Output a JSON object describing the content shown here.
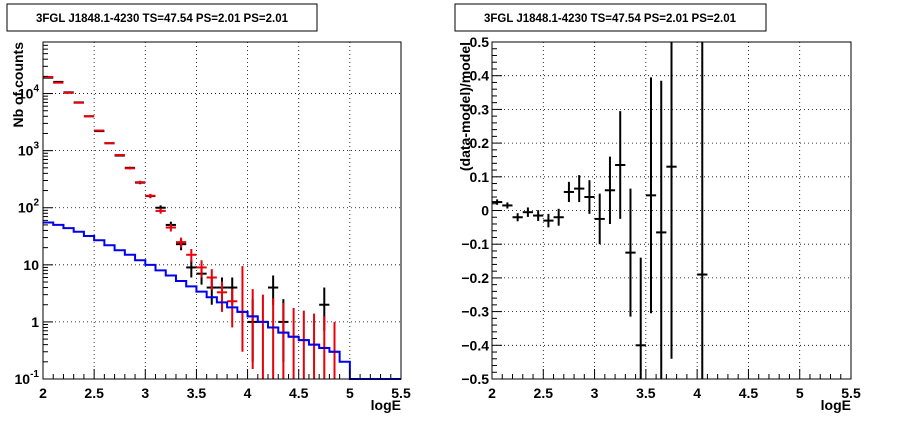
{
  "chart_data": [
    {
      "type": "step-histogram",
      "title": "3FGL J1848.1-4230 TS=47.54 PS=2.01 PS=2.01",
      "xlabel": "logE",
      "ylabel": "Nb of counts",
      "xlim": [
        2,
        5.5
      ],
      "ylim": [
        0.1,
        80000
      ],
      "yscale": "log",
      "grid": true,
      "x_ticks": [
        "2",
        "2.5",
        "3",
        "3.5",
        "4",
        "4.5",
        "5",
        "5.5"
      ],
      "y_ticks": [
        {
          "v": 0.1,
          "label": "10^-1"
        },
        {
          "v": 1,
          "label": "1"
        },
        {
          "v": 10,
          "label": "10"
        },
        {
          "v": 100,
          "label": "10^2"
        },
        {
          "v": 1000,
          "label": "10^3"
        },
        {
          "v": 10000,
          "label": "10^4"
        }
      ],
      "bin_width": 0.1,
      "series": [
        {
          "style": "points",
          "color": "#000000",
          "x": [
            2.05,
            2.15,
            2.25,
            2.35,
            2.45,
            2.55,
            2.65,
            2.75,
            2.85,
            2.95,
            3.05,
            3.15,
            3.25,
            3.35,
            3.45,
            3.55,
            3.65,
            3.75,
            3.85,
            4.05,
            4.25,
            4.35,
            4.75
          ],
          "y": [
            19000,
            16000,
            10500,
            7000,
            4000,
            2200,
            1350,
            820,
            500,
            275,
            160,
            100,
            50,
            23,
            9,
            7,
            4,
            4,
            4,
            1,
            4,
            1,
            2
          ],
          "err_lo": [
            140,
            130,
            100,
            85,
            65,
            47,
            37,
            29,
            22,
            17,
            13,
            10,
            7,
            5,
            3,
            2.5,
            2,
            2,
            2,
            0.8,
            2,
            0.8,
            1.3
          ],
          "err_hi": [
            140,
            130,
            100,
            85,
            65,
            47,
            37,
            29,
            22,
            17,
            13,
            10,
            7,
            5,
            3,
            2.5,
            2,
            2,
            2,
            1.5,
            2.5,
            1.5,
            2
          ]
        },
        {
          "style": "points",
          "color": "#e8000b",
          "x": [
            2.05,
            2.15,
            2.25,
            2.35,
            2.45,
            2.55,
            2.65,
            2.75,
            2.85,
            2.95,
            3.05,
            3.15,
            3.25,
            3.35,
            3.45,
            3.55,
            3.65,
            3.75,
            3.85,
            3.95,
            4.05,
            4.15,
            4.25,
            4.35,
            4.45,
            4.55,
            4.65,
            4.75,
            4.85
          ],
          "y": [
            19500,
            15500,
            10300,
            6900,
            4000,
            2250,
            1350,
            840,
            490,
            280,
            162,
            88,
            45,
            25,
            15,
            9,
            6,
            3.3,
            2.3,
            1.5,
            1.25,
            1,
            0.8,
            0.65,
            0.55,
            0.48,
            0.4,
            0.35,
            0.3
          ],
          "err_lo": [
            140,
            125,
            100,
            83,
            63,
            47,
            37,
            29,
            22,
            17,
            13,
            9.4,
            6.7,
            5,
            3.9,
            3,
            2.4,
            1.8,
            1.5,
            1.2,
            1.1,
            0.9,
            0.7,
            0.58,
            0.5,
            0.44,
            0.36,
            0.3,
            0.25
          ],
          "err_hi": [
            140,
            125,
            100,
            83,
            63,
            47,
            37,
            29,
            22,
            17,
            13,
            9.4,
            6.7,
            5,
            3.9,
            3,
            2.4,
            1.8,
            1.5,
            8,
            2.5,
            2,
            1.8,
            1.5,
            1.2,
            1.1,
            1,
            0.9,
            0.7
          ]
        },
        {
          "style": "step",
          "color": "#0000ee",
          "edges": [
            2.0,
            2.1,
            2.2,
            2.3,
            2.4,
            2.5,
            2.6,
            2.7,
            2.8,
            2.9,
            3.0,
            3.1,
            3.2,
            3.3,
            3.4,
            3.5,
            3.6,
            3.7,
            3.8,
            3.9,
            4.0,
            4.1,
            4.2,
            4.3,
            4.4,
            4.5,
            4.6,
            4.7,
            4.8,
            4.9,
            5.0,
            5.1,
            5.2,
            5.3,
            5.4,
            5.5
          ],
          "y": [
            55,
            50,
            44,
            38,
            32,
            27,
            22,
            18,
            15,
            12,
            10,
            8,
            6.5,
            5.2,
            4.2,
            3.4,
            2.7,
            2.2,
            1.8,
            1.5,
            1.25,
            1.0,
            0.8,
            0.65,
            0.55,
            0.48,
            0.4,
            0.35,
            0.3,
            0.2,
            0.1,
            0.1,
            0.1,
            0.1,
            0.1
          ]
        }
      ]
    },
    {
      "type": "scatter-errorbar",
      "title": "3FGL J1848.1-4230 TS=47.54 PS=2.01 PS=2.01",
      "xlabel": "logE",
      "ylabel": "(data-model)/model",
      "xlim": [
        2,
        5.5
      ],
      "ylim": [
        -0.5,
        0.5
      ],
      "grid": true,
      "x_ticks": [
        "2",
        "2.5",
        "3",
        "3.5",
        "4",
        "4.5",
        "5",
        "5.5"
      ],
      "y_ticks": [
        "−0.5",
        "−0.4",
        "−0.3",
        "−0.2",
        "−0.1",
        "0",
        "0.1",
        "0.2",
        "0.3",
        "0.4",
        "0.5"
      ],
      "y_tick_values": [
        -0.5,
        -0.4,
        -0.3,
        -0.2,
        -0.1,
        0,
        0.1,
        0.2,
        0.3,
        0.4,
        0.5
      ],
      "bin_width": 0.1,
      "series": [
        {
          "color": "#000000",
          "x": [
            2.05,
            2.15,
            2.25,
            2.35,
            2.45,
            2.55,
            2.65,
            2.75,
            2.85,
            2.95,
            3.05,
            3.15,
            3.25,
            3.35,
            3.45,
            3.55,
            3.65,
            3.75,
            4.05
          ],
          "y": [
            0.025,
            0.015,
            -0.02,
            -0.005,
            -0.015,
            -0.03,
            -0.02,
            0.055,
            0.065,
            0.04,
            -0.025,
            0.06,
            0.135,
            -0.125,
            -0.4,
            0.045,
            -0.065,
            0.13,
            -0.19
          ],
          "err": [
            0.008,
            0.009,
            0.012,
            0.014,
            0.016,
            0.02,
            0.025,
            0.03,
            0.04,
            0.05,
            0.075,
            0.1,
            0.16,
            0.19,
            0.26,
            0.35,
            0.45,
            0.57,
            0.9
          ]
        }
      ]
    }
  ]
}
